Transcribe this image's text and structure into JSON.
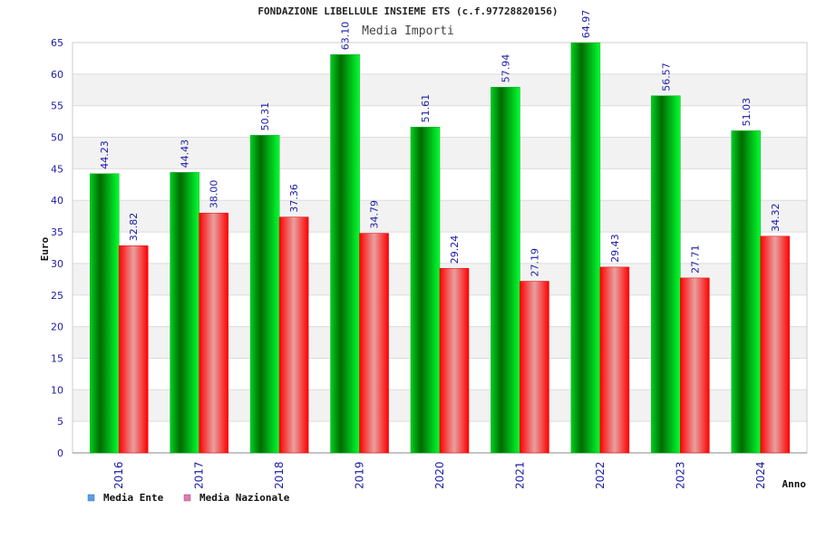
{
  "chart_data": {
    "type": "bar",
    "title": "FONDAZIONE LIBELLULE INSIEME ETS (c.f.97728820156)",
    "subtitle": "Media Importi",
    "xlabel": "Anno",
    "ylabel": "Euro",
    "ylim": [
      0,
      65
    ],
    "ytick_step": 5,
    "grid": true,
    "legend_position": "bottom-left",
    "categories": [
      "2016",
      "2017",
      "2018",
      "2019",
      "2020",
      "2021",
      "2022",
      "2023",
      "2024"
    ],
    "series": [
      {
        "name": "Media Ente",
        "values": [
          44.23,
          44.43,
          50.31,
          63.1,
          51.61,
          57.94,
          64.97,
          56.57,
          51.03
        ],
        "labels": [
          "44.23",
          "44.43",
          "50.31",
          "63.10",
          "51.61",
          "57.94",
          "64.97",
          "56.57",
          "51.03"
        ],
        "color": "#00c000",
        "legend_color": "#5a9ee8"
      },
      {
        "name": "Media Nazionale",
        "values": [
          32.82,
          38.0,
          37.36,
          34.79,
          29.24,
          27.19,
          29.43,
          27.71,
          34.32
        ],
        "labels": [
          "32.82",
          "38.00",
          "37.36",
          "34.79",
          "29.24",
          "27.19",
          "29.43",
          "27.71",
          "34.32"
        ],
        "color": "#ee0000",
        "legend_color": "#e07ab0"
      }
    ]
  }
}
